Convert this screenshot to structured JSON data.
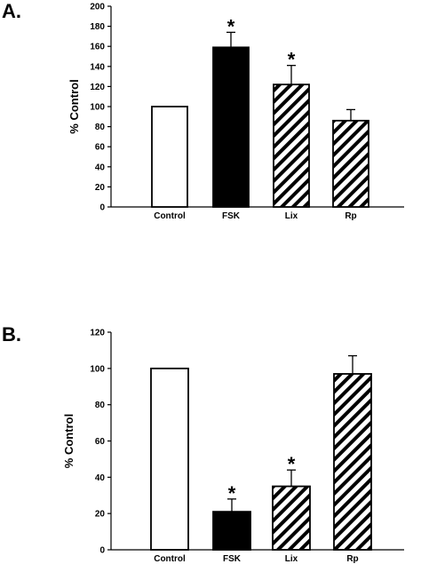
{
  "chart_data": [
    {
      "type": "bar",
      "panel": "A.",
      "ylabel": "% Control",
      "xlabel": "",
      "title": "",
      "categories": [
        "Control",
        "FSK",
        "Lix",
        "Rp"
      ],
      "values": [
        100,
        159,
        122,
        86
      ],
      "errors": [
        0,
        15,
        19,
        11
      ],
      "significance": [
        "",
        "*",
        "*",
        ""
      ],
      "fills": [
        "white",
        "black",
        "hatch",
        "hatch"
      ],
      "ylim": [
        0,
        200
      ],
      "yticks": [
        "0",
        "20",
        "40",
        "60",
        "80",
        "100",
        "120",
        "140",
        "160",
        "180",
        "200"
      ]
    },
    {
      "type": "bar",
      "panel": "B.",
      "ylabel": "% Control",
      "xlabel": "",
      "title": "",
      "categories": [
        "Control",
        "FSK",
        "Lix",
        "Rp"
      ],
      "values": [
        100,
        21,
        35,
        97
      ],
      "errors": [
        0,
        7,
        9,
        10
      ],
      "significance": [
        "",
        "*",
        "*",
        ""
      ],
      "fills": [
        "white",
        "black",
        "hatch",
        "hatch"
      ],
      "ylim": [
        0,
        120
      ],
      "yticks": [
        "0",
        "20",
        "40",
        "60",
        "80",
        "100",
        "120"
      ]
    }
  ]
}
